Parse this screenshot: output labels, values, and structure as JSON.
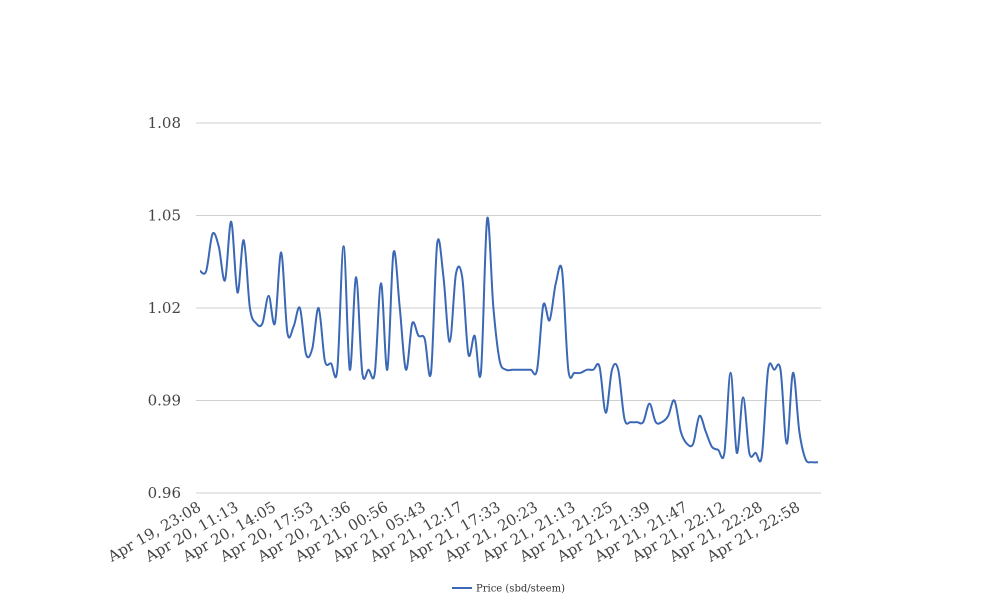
{
  "chart_data": {
    "type": "line",
    "title": "",
    "xlabel": "",
    "ylabel": "",
    "ylim": [
      0.96,
      1.08
    ],
    "yticks": [
      "0.96",
      "0.99",
      "1.02",
      "1.05",
      "1.08"
    ],
    "grid": true,
    "legend_position": "bottom-center",
    "x_tick_labels": [
      "Apr 19, 23:08",
      "Apr 20, 11:13",
      "Apr 20, 14:05",
      "Apr 20, 17:53",
      "Apr 20, 21:36",
      "Apr 21, 00:56",
      "Apr 21, 05:43",
      "Apr 21, 12:17",
      "Apr 21, 17:33",
      "Apr 21, 20:23",
      "Apr 21, 21:13",
      "Apr 21, 21:25",
      "Apr 21, 21:39",
      "Apr 21, 21:47",
      "Apr 21, 22:12",
      "Apr 21, 22:28",
      "Apr 21, 22:58"
    ],
    "series": [
      {
        "name": "Price (sbd/steem)",
        "color": "#3b68b5",
        "values": [
          1.032,
          1.032,
          1.044,
          1.04,
          1.029,
          1.048,
          1.025,
          1.042,
          1.02,
          1.015,
          1.015,
          1.024,
          1.015,
          1.038,
          1.012,
          1.014,
          1.02,
          1.005,
          1.007,
          1.02,
          1.003,
          1.002,
          1.0,
          1.04,
          1.0,
          1.03,
          0.999,
          1.0,
          0.999,
          1.028,
          1.0,
          1.038,
          1.02,
          1.0,
          1.015,
          1.011,
          1.01,
          0.999,
          1.041,
          1.03,
          1.009,
          1.031,
          1.03,
          1.005,
          1.011,
          0.999,
          1.049,
          1.02,
          1.003,
          1.0,
          1.0,
          1.0,
          1.0,
          1.0,
          1.0,
          1.021,
          1.016,
          1.028,
          1.032,
          1.0,
          0.999,
          0.999,
          1.0,
          1.0,
          1.001,
          0.986,
          1.0,
          1.0,
          0.984,
          0.983,
          0.983,
          0.983,
          0.989,
          0.983,
          0.983,
          0.985,
          0.99,
          0.98,
          0.976,
          0.976,
          0.985,
          0.98,
          0.975,
          0.974,
          0.973,
          0.999,
          0.973,
          0.991,
          0.973,
          0.973,
          0.972,
          1.0,
          1.0,
          1.0,
          0.976,
          0.999,
          0.98,
          0.971,
          0.97,
          0.97
        ]
      }
    ]
  }
}
